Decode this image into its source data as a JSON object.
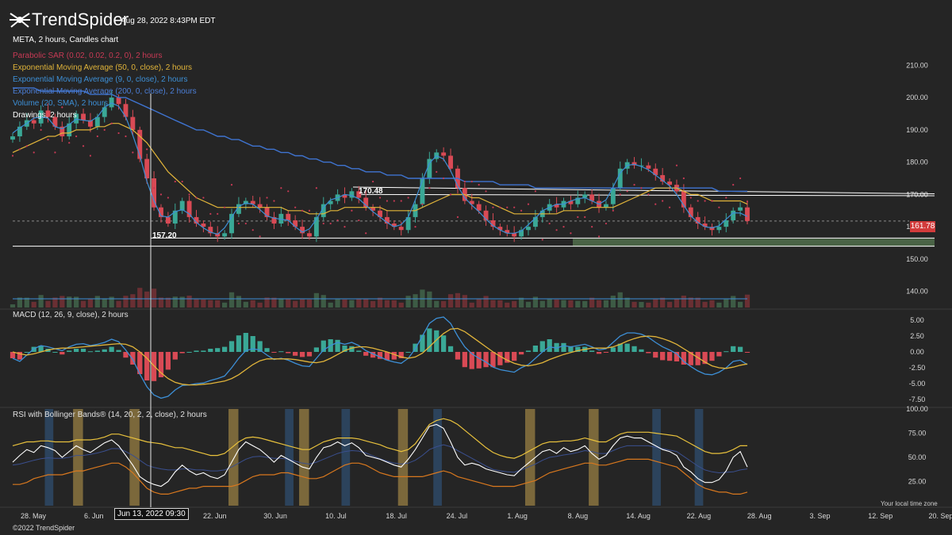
{
  "header": {
    "brand": "TrendSpider",
    "timestamp": "Aug 28, 2022 8:43PM EDT",
    "chart_title": "META, 2 hours, Candles chart"
  },
  "indicators": [
    {
      "label": "Parabolic SAR (0.02, 0.02, 0.2, 0), 2 hours",
      "color": "#c93a55"
    },
    {
      "label": "Exponential Moving Average (50, 0, close), 2 hours",
      "color": "#e2b53a"
    },
    {
      "label": "Exponential Moving Average (9, 0, close), 2 hours",
      "color": "#3d8fd6"
    },
    {
      "label": "Exponential Moving Average (200, 0, close), 2 hours",
      "color": "#4c7fd8"
    },
    {
      "label": "Volume (20, SMA), 2 hours",
      "color": "#3d8fd6"
    },
    {
      "label": "Drawings, 2 hours",
      "color": "#ffffff"
    }
  ],
  "panels": {
    "macd_label": "MACD (12, 26, 9, close), 2 hours",
    "rsi_label": "RSI with Bollinger Bands® (14, 20, 2, 2, close), 2 hours"
  },
  "footer": {
    "copyright": "©2022 TrendSpider",
    "local_time_note": "Your local time zone",
    "cursor_date": "Jun 13, 2022 09:30"
  },
  "watermark": "META",
  "colors": {
    "background": "#252525",
    "up": "#3aa896",
    "down": "#d94a55",
    "sar": "#c93a55",
    "ema50": "#e2b53a",
    "ema9": "#3d8fd6",
    "ema200": "#3f74d1",
    "rsi_band": "#e8c13c",
    "rsi_lower": "#d9781e",
    "highlight_gold": "#8b7440",
    "highlight_blue": "#2d4763",
    "zone": "#4a6346"
  },
  "chart_data": [
    {
      "panel": "price",
      "type": "line",
      "title": "META, 2 hours, Candles chart",
      "ylim": [
        135,
        215
      ],
      "y_ticks": [
        "210.00",
        "200.00",
        "190.00",
        "180.00",
        "170.00",
        "160.00",
        "150.00",
        "140.00"
      ],
      "x_ticks": [
        "28. May",
        "6. Jun",
        "13. Jun",
        "22. Jun",
        "30. Jun",
        "10. Jul",
        "18. Jul",
        "24. Jul",
        "1. Aug",
        "8. Aug",
        "14. Aug",
        "22. Aug",
        "28. Aug",
        "3. Sep",
        "12. Sep",
        "20. Sep"
      ],
      "last_price": "161.78",
      "levels": [
        {
          "label": "170.48",
          "value": 170.48
        },
        {
          "label": "157.20",
          "value": 157.2
        }
      ],
      "series": [
        {
          "name": "Close",
          "values": [
            188,
            191,
            193,
            192,
            196,
            194,
            191,
            188,
            192,
            195,
            193,
            191,
            194,
            197,
            200,
            198,
            194,
            190,
            181,
            175,
            166,
            163,
            161,
            165,
            168,
            163,
            161,
            160,
            158,
            157,
            158,
            164,
            167,
            168,
            167,
            166,
            163,
            161,
            164,
            162,
            160,
            158,
            157,
            163,
            167,
            168,
            170,
            169,
            171,
            169,
            166,
            165,
            163,
            161,
            160,
            159,
            163,
            167,
            175,
            181,
            183,
            182,
            178,
            172,
            168,
            167,
            165,
            162,
            160,
            159,
            158,
            157,
            159,
            160,
            163,
            165,
            167,
            166,
            168,
            167,
            169,
            170,
            168,
            166,
            167,
            172,
            178,
            180,
            179,
            179,
            178,
            176,
            174,
            173,
            171,
            166,
            163,
            161,
            160,
            159,
            160,
            162,
            165,
            166,
            161.78
          ]
        },
        {
          "name": "EMA 50",
          "values": [
            183,
            184,
            185,
            186,
            187,
            188,
            188,
            189,
            189,
            190,
            190,
            190,
            191,
            191,
            192,
            192,
            191,
            190,
            188,
            186,
            183,
            180,
            177,
            175,
            173,
            171,
            169,
            168,
            167,
            166,
            166,
            166,
            166,
            166,
            166,
            166,
            166,
            166,
            166,
            165,
            165,
            165,
            164,
            164,
            164,
            165,
            165,
            166,
            166,
            166,
            166,
            166,
            166,
            165,
            165,
            165,
            165,
            165,
            166,
            167,
            168,
            169,
            170,
            170,
            170,
            169,
            169,
            168,
            167,
            166,
            165,
            164,
            164,
            164,
            164,
            164,
            164,
            164,
            165,
            165,
            165,
            165,
            166,
            166,
            166,
            166,
            167,
            168,
            169,
            170,
            171,
            172,
            172,
            172,
            172,
            171,
            170,
            170,
            169,
            168,
            168,
            168,
            168,
            168,
            167
          ]
        },
        {
          "name": "EMA 200",
          "values": [
            203,
            203,
            203,
            203,
            202,
            202,
            202,
            202,
            202,
            202,
            202,
            201,
            201,
            201,
            201,
            200,
            200,
            199,
            198,
            197,
            196,
            195,
            194,
            193,
            192,
            191,
            190,
            190,
            189,
            188,
            188,
            187,
            187,
            186,
            185,
            185,
            184,
            184,
            183,
            183,
            182,
            182,
            181,
            181,
            180,
            180,
            179,
            179,
            178,
            178,
            177,
            177,
            177,
            176,
            176,
            176,
            175,
            175,
            175,
            175,
            175,
            175,
            175,
            175,
            174,
            174,
            174,
            174,
            174,
            173,
            173,
            173,
            173,
            173,
            172,
            172,
            172,
            172,
            172,
            172,
            172,
            172,
            172,
            172,
            172,
            172,
            172,
            172,
            172,
            172,
            172,
            172,
            172,
            172,
            172,
            172,
            172,
            172,
            172,
            172,
            171,
            171,
            171,
            171,
            171
          ]
        }
      ]
    },
    {
      "panel": "macd",
      "type": "line",
      "title": "MACD (12, 26, 9, close), 2 hours",
      "ylim": [
        -8.5,
        6.5
      ],
      "y_ticks": [
        "5.00",
        "2.50",
        "0.00",
        "-2.50",
        "-5.00",
        "-7.50"
      ],
      "series": [
        {
          "name": "MACD",
          "values": [
            -1,
            -1.5,
            -0.5,
            0.5,
            1,
            0.8,
            0.5,
            0.2,
            0.8,
            1.2,
            1.3,
            1,
            1.2,
            1.5,
            2,
            1.6,
            0.3,
            -1.2,
            -3.5,
            -5.5,
            -6.8,
            -7.3,
            -7,
            -6,
            -5.3,
            -5.2,
            -5,
            -4.9,
            -4.5,
            -4.2,
            -3.8,
            -2.5,
            -1,
            0.2,
            0.5,
            0.3,
            -0.5,
            -1.2,
            -1,
            -1.3,
            -1.8,
            -2.2,
            -2.3,
            -1,
            0.3,
            1,
            1.5,
            1.2,
            1.5,
            1,
            0.2,
            -0.3,
            -0.8,
            -1.3,
            -1.6,
            -1.8,
            -1,
            0.5,
            2.5,
            4.5,
            5.3,
            5.5,
            4.5,
            2.5,
            0.8,
            -0.3,
            -1,
            -1.6,
            -2.4,
            -2.8,
            -3,
            -3.2,
            -2.5,
            -2,
            -1,
            0,
            0.8,
            0.6,
            1,
            0.8,
            1,
            1.2,
            0.8,
            0.3,
            0.5,
            1.5,
            2.5,
            3,
            3,
            2.8,
            2.3,
            1.5,
            0.8,
            0.3,
            -0.3,
            -1.5,
            -2.3,
            -3,
            -3.5,
            -3.6,
            -3.2,
            -2.5,
            -1.5,
            -1.3,
            -2
          ]
        },
        {
          "name": "Signal",
          "values": [
            0,
            -0.3,
            -0.5,
            -0.3,
            0,
            0.3,
            0.5,
            0.6,
            0.6,
            0.7,
            0.8,
            0.9,
            1,
            1.1,
            1.2,
            1.3,
            1.2,
            0.8,
            0,
            -1,
            -2.2,
            -3.3,
            -4.2,
            -4.8,
            -5.1,
            -5.2,
            -5.2,
            -5.1,
            -5,
            -4.8,
            -4.6,
            -4.2,
            -3.6,
            -2.8,
            -2,
            -1.4,
            -1.1,
            -1.1,
            -1.1,
            -1.1,
            -1.2,
            -1.4,
            -1.6,
            -1.7,
            -1.5,
            -1,
            -0.4,
            0.2,
            0.6,
            0.8,
            0.8,
            0.6,
            0.3,
            0,
            -0.4,
            -0.8,
            -1,
            -0.8,
            -0.2,
            0.8,
            1.9,
            2.9,
            3.6,
            3.7,
            3.2,
            2.4,
            1.6,
            0.8,
            0,
            -0.7,
            -1.3,
            -1.8,
            -2.1,
            -2.2,
            -2,
            -1.7,
            -1.2,
            -0.8,
            -0.4,
            -0.1,
            0.2,
            0.4,
            0.6,
            0.6,
            0.6,
            0.8,
            1.2,
            1.7,
            2.1,
            2.4,
            2.5,
            2.4,
            2.1,
            1.7,
            1.2,
            0.5,
            -0.2,
            -0.9,
            -1.6,
            -2.2,
            -2.5,
            -2.6,
            -2.4,
            -2.1,
            -1.9
          ]
        }
      ]
    },
    {
      "panel": "rsi",
      "type": "line",
      "title": "RSI with Bollinger Bands® (14, 20, 2, 2, close), 2 hours",
      "ylim": [
        0,
        100
      ],
      "y_ticks": [
        "100.00",
        "75.00",
        "50.00",
        "25.00"
      ],
      "series": [
        {
          "name": "RSI",
          "values": [
            45,
            52,
            58,
            55,
            62,
            60,
            57,
            50,
            56,
            62,
            58,
            55,
            60,
            65,
            68,
            62,
            52,
            42,
            30,
            25,
            22,
            20,
            25,
            35,
            42,
            36,
            32,
            34,
            30,
            28,
            32,
            45,
            58,
            66,
            62,
            58,
            52,
            45,
            52,
            48,
            44,
            40,
            38,
            50,
            60,
            62,
            66,
            62,
            65,
            60,
            52,
            50,
            48,
            45,
            42,
            40,
            48,
            58,
            70,
            82,
            84,
            80,
            66,
            50,
            42,
            44,
            42,
            38,
            36,
            34,
            32,
            31,
            38,
            44,
            50,
            56,
            58,
            54,
            60,
            56,
            58,
            62,
            54,
            48,
            52,
            62,
            70,
            72,
            70,
            70,
            66,
            62,
            58,
            56,
            52,
            40,
            35,
            28,
            24,
            24,
            27,
            36,
            50,
            56,
            40
          ]
        },
        {
          "name": "Upper band",
          "values": [
            62,
            64,
            66,
            66,
            67,
            67,
            66,
            66,
            66,
            68,
            68,
            68,
            69,
            71,
            74,
            74,
            72,
            70,
            68,
            66,
            65,
            64,
            62,
            60,
            60,
            58,
            56,
            54,
            52,
            52,
            54,
            60,
            66,
            70,
            71,
            70,
            68,
            66,
            64,
            62,
            60,
            58,
            58,
            62,
            66,
            68,
            70,
            70,
            70,
            69,
            67,
            65,
            63,
            60,
            58,
            56,
            58,
            64,
            74,
            84,
            88,
            90,
            88,
            84,
            78,
            72,
            66,
            60,
            55,
            52,
            50,
            49,
            52,
            56,
            60,
            64,
            66,
            66,
            67,
            67,
            68,
            70,
            68,
            66,
            66,
            70,
            74,
            76,
            76,
            76,
            76,
            75,
            74,
            73,
            72,
            68,
            64,
            60,
            56,
            54,
            54,
            55,
            58,
            62,
            62
          ]
        },
        {
          "name": "Lower band",
          "values": [
            22,
            22,
            24,
            28,
            30,
            32,
            32,
            32,
            34,
            36,
            36,
            38,
            40,
            42,
            44,
            44,
            40,
            34,
            26,
            18,
            14,
            12,
            12,
            14,
            16,
            18,
            18,
            20,
            20,
            20,
            20,
            20,
            22,
            26,
            30,
            32,
            32,
            32,
            34,
            34,
            32,
            30,
            28,
            28,
            30,
            34,
            38,
            42,
            44,
            44,
            42,
            38,
            34,
            32,
            30,
            30,
            30,
            30,
            30,
            32,
            34,
            36,
            34,
            30,
            28,
            26,
            24,
            22,
            20,
            20,
            20,
            20,
            22,
            24,
            26,
            30,
            34,
            36,
            38,
            40,
            42,
            44,
            44,
            42,
            42,
            44,
            46,
            48,
            48,
            48,
            48,
            46,
            44,
            42,
            40,
            34,
            28,
            22,
            18,
            16,
            14,
            14,
            12,
            12,
            14
          ]
        }
      ]
    }
  ]
}
